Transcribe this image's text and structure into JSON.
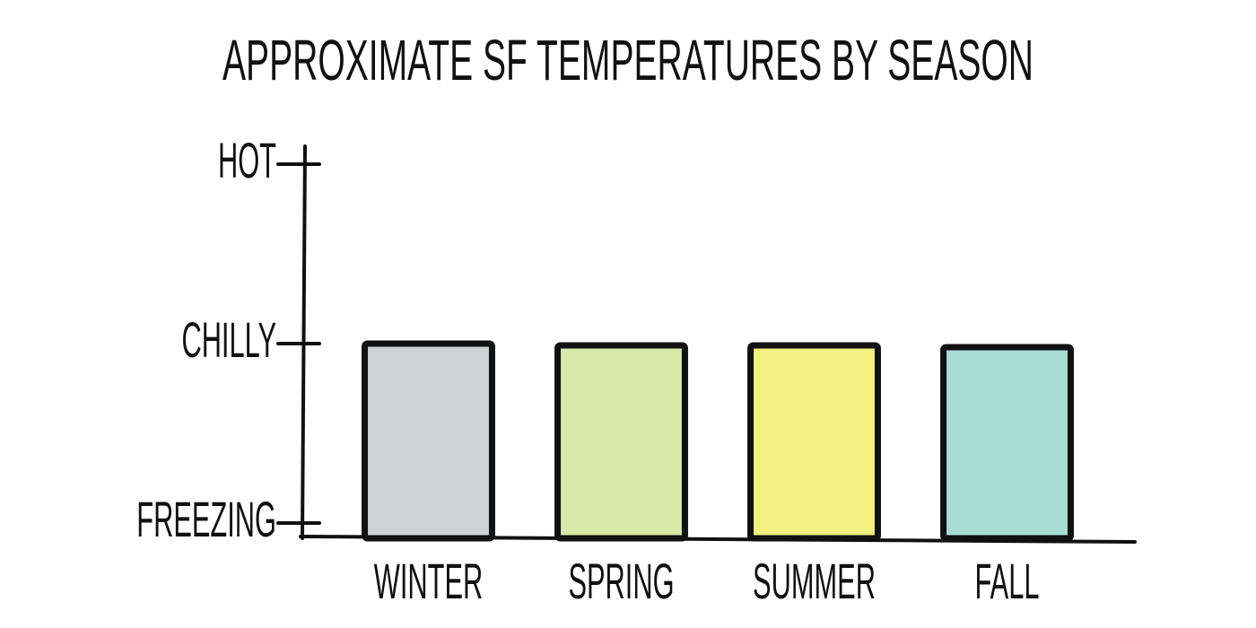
{
  "chart_data": {
    "type": "bar",
    "title": "APPROXIMATE SF TEMPERATURES BY SEASON",
    "categories": [
      "WINTER",
      "SPRING",
      "SUMMER",
      "FALL"
    ],
    "values": [
      1,
      0.99,
      0.99,
      0.98
    ],
    "colors": [
      "#d1d2d4",
      "#d8e8a6",
      "#f2f080",
      "#a8ddd6"
    ],
    "ylim": [
      -0.085,
      2.1
    ],
    "yticks": [
      {
        "value": 0,
        "label": "FREEZING"
      },
      {
        "value": 1,
        "label": "CHILLY"
      },
      {
        "value": 2,
        "label": "HOT"
      }
    ]
  }
}
